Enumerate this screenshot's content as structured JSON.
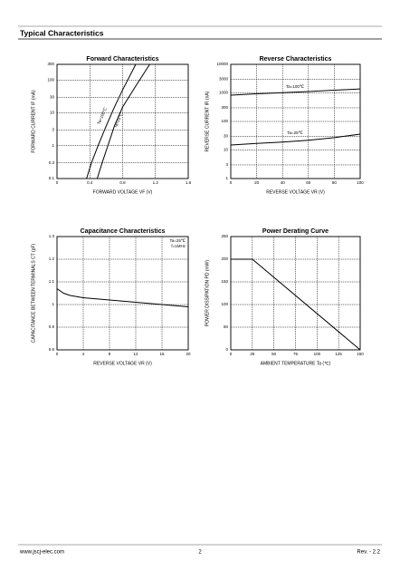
{
  "header": {
    "title": "Typical Characteristics"
  },
  "chart_data": [
    {
      "type": "line",
      "title": "Forward   Characteristics",
      "xlabel": "FORWARD VOLTAGE   VF   (V)",
      "ylabel": "FORWARD CURRENT   IF   (mA)",
      "xlim": [
        0,
        1.6
      ],
      "xticks": [
        0,
        0.4,
        0.8,
        1.2,
        1.6
      ],
      "ylim": [
        0.1,
        300
      ],
      "yticks": [
        0.1,
        0.3,
        1,
        3,
        10,
        30,
        100,
        300
      ],
      "yscale": "log",
      "grid": true,
      "series": [
        {
          "name": "Ta=100℃",
          "color": "#000000",
          "x": [
            0.36,
            0.42,
            0.5,
            0.6,
            0.7,
            0.8,
            0.96
          ],
          "values": [
            0.1,
            0.3,
            1,
            4,
            15,
            50,
            300
          ]
        },
        {
          "name": "Ta=25℃",
          "color": "#000000",
          "x": [
            0.49,
            0.55,
            0.62,
            0.7,
            0.8,
            0.95,
            1.13
          ],
          "values": [
            0.1,
            0.3,
            1,
            4,
            15,
            60,
            300
          ]
        }
      ]
    },
    {
      "type": "line",
      "title": "Reverse    Characteristics",
      "xlabel": "REVERSE VOLTAGE   VR   (V)",
      "ylabel": "REVERSE CURRENT   IR   (nA)",
      "xlim": [
        0,
        100
      ],
      "xticks": [
        0,
        20,
        40,
        60,
        80,
        100
      ],
      "ylim": [
        1,
        10000
      ],
      "yticks": [
        1,
        3,
        10,
        30,
        100,
        300,
        1000,
        3000,
        10000
      ],
      "yscale": "log",
      "grid": true,
      "series": [
        {
          "name": "Ta=100℃",
          "color": "#000000",
          "x": [
            0,
            20,
            40,
            60,
            80,
            100
          ],
          "values": [
            830,
            930,
            1020,
            1120,
            1240,
            1380
          ]
        },
        {
          "name": "Ta=25℃",
          "color": "#000000",
          "x": [
            0,
            20,
            40,
            60,
            80,
            100
          ],
          "values": [
            15,
            17,
            19,
            22,
            27,
            36
          ]
        }
      ]
    },
    {
      "type": "line",
      "title": "Capacitance Characteristics",
      "xlabel": "REVERSE VOLTAGE   VR   (V)",
      "ylabel": "CAPACITANCE BETWEEN TERMINALS   CT   (pF)",
      "annotations": [
        "Ta=25℃",
        "f=1MHz"
      ],
      "xlim": [
        0,
        20
      ],
      "xticks": [
        0,
        4,
        8,
        12,
        16,
        20
      ],
      "ylim": [
        0.8,
        1.3
      ],
      "yticks": [
        0.8,
        0.9,
        1.0,
        1.1,
        1.2,
        1.3
      ],
      "grid": true,
      "series": [
        {
          "color": "#000000",
          "x": [
            0,
            1,
            2,
            4,
            8,
            12,
            16,
            20
          ],
          "values": [
            1.07,
            1.05,
            1.04,
            1.03,
            1.02,
            1.01,
            1.0,
            0.99
          ]
        }
      ]
    },
    {
      "type": "line",
      "title": "Power Derating Curve",
      "xlabel": "AMBIENT TEMPERATURE   Ta   (℃)",
      "ylabel": "POWER DISSIPATION   PD   (mW)",
      "xlim": [
        0,
        150
      ],
      "xticks": [
        0,
        25,
        50,
        75,
        100,
        125,
        150
      ],
      "ylim": [
        0,
        250
      ],
      "yticks": [
        0,
        50,
        100,
        150,
        200,
        250
      ],
      "grid": true,
      "series": [
        {
          "color": "#000000",
          "x": [
            0,
            25,
            150
          ],
          "values": [
            200,
            200,
            0
          ]
        }
      ]
    }
  ],
  "footer": {
    "website": "www.jscj-elec.com",
    "page": "2",
    "revision": "Rev. - 2.2"
  }
}
